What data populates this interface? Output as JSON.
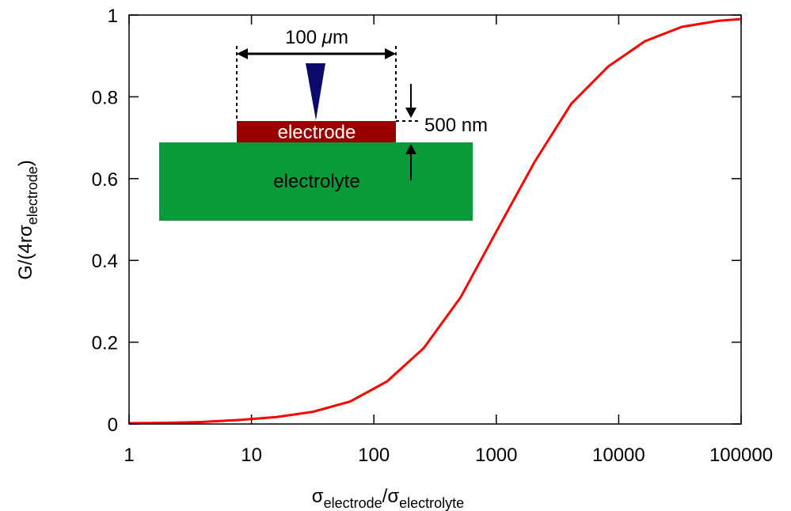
{
  "chart_data": {
    "type": "line",
    "xscale": "log",
    "xlabel": {
      "symbol": "σ",
      "sub": "electrode",
      "sep": "/σ",
      "sub2": "electrolyte"
    },
    "ylabel": {
      "main": "G/(4rσ",
      "sub": "electrode",
      "end": ")"
    },
    "x": [
      1,
      2,
      4,
      8,
      16,
      32,
      64,
      128,
      256,
      512,
      1024,
      2048,
      4096,
      8192,
      16384,
      32768,
      65536,
      100000
    ],
    "series": [
      {
        "color": "#ff0000",
        "values": [
          0.002,
          0.003,
          0.005,
          0.01,
          0.017,
          0.03,
          0.055,
          0.104,
          0.186,
          0.31,
          0.476,
          0.64,
          0.783,
          0.874,
          0.936,
          0.971,
          0.986,
          0.99
        ]
      }
    ],
    "xlim": [
      1,
      100000
    ],
    "xticks": [
      1,
      10,
      100,
      1000,
      10000,
      100000
    ],
    "ylim": [
      0,
      1
    ],
    "yticks": [
      0,
      0.2,
      0.4,
      0.6,
      0.8,
      1
    ],
    "inset": {
      "width_label": "100 ",
      "width_unit_mu": "μ",
      "width_unit": "m",
      "electrode": "electrode",
      "thickness": "500 nm",
      "electrolyte": "electrolyte"
    }
  }
}
